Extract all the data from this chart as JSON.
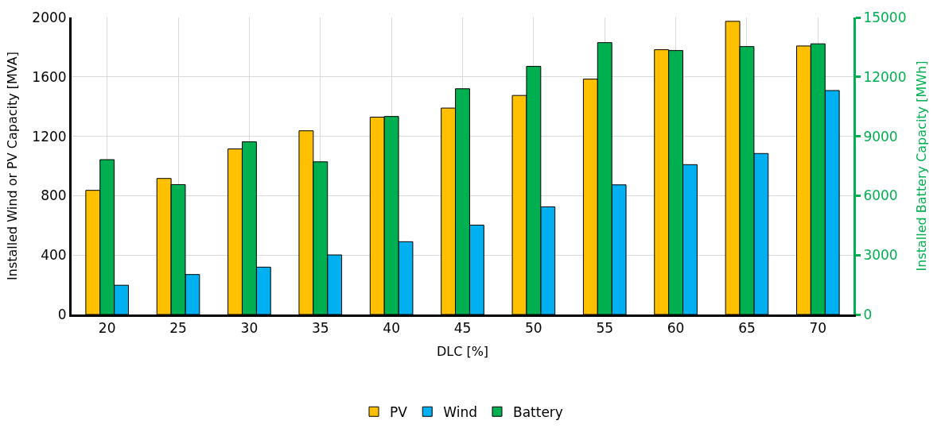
{
  "chart_data": {
    "type": "bar",
    "xlabel": "DLC [%]",
    "ylabel": "Installed Wind or PV Capacity [MVA]",
    "y2label": "Installed Battery Capacity [MWh]",
    "categories": [
      "20",
      "25",
      "30",
      "35",
      "40",
      "45",
      "50",
      "55",
      "60",
      "65",
      "70"
    ],
    "series": [
      {
        "name": "PV",
        "color": "#ffc000",
        "values": [
          836,
          916,
          1115,
          1237,
          1329,
          1390,
          1475,
          1585,
          1783,
          1974,
          1808
        ]
      },
      {
        "name": "Battery",
        "color": "#00b050",
        "axis": "y2",
        "values": [
          7820,
          6560,
          8720,
          7710,
          10000,
          11400,
          12530,
          13730,
          13330,
          13530,
          13670
        ]
      },
      {
        "name": "Wind",
        "color": "#00b0f0",
        "values": [
          197,
          269,
          319,
          401,
          490,
          602,
          725,
          873,
          1009,
          1084,
          1508
        ]
      }
    ],
    "ylim": [
      0,
      2000
    ],
    "yticks": [
      0,
      400,
      800,
      1200,
      1600,
      2000
    ],
    "y2lim": [
      0,
      15000
    ],
    "y2ticks": [
      0,
      3000,
      6000,
      9000,
      12000,
      15000
    ],
    "grid": true,
    "legend": "bottom"
  }
}
